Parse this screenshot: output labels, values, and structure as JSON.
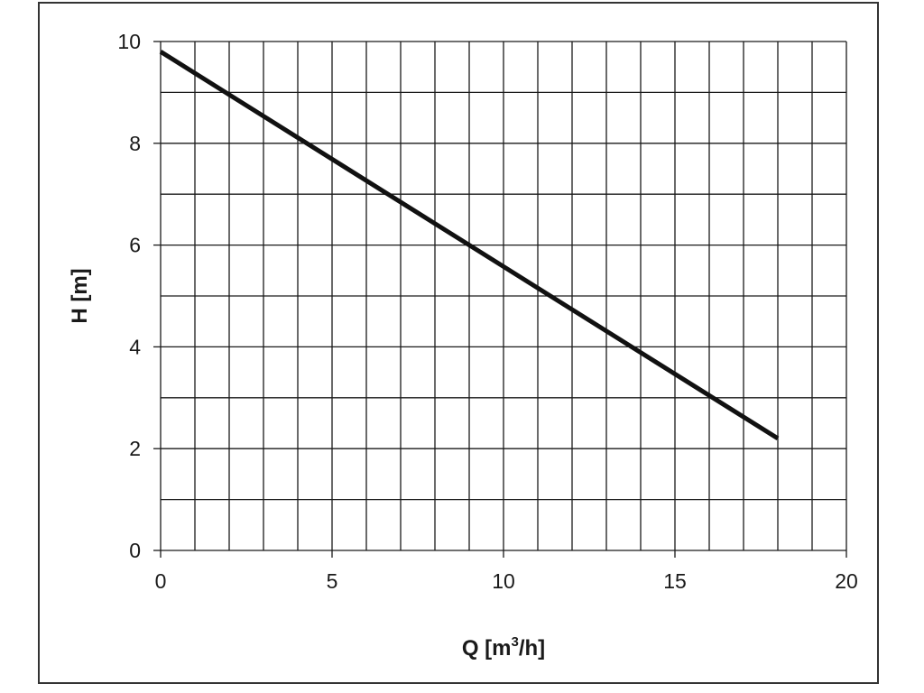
{
  "chart_data": {
    "type": "line",
    "title": "",
    "xlabel": {
      "text": "Q [m/h]",
      "prefix": "Q [m",
      "superscript": "3",
      "suffix": "/h]"
    },
    "ylabel": "H [m]",
    "xlim": [
      0,
      20
    ],
    "ylim": [
      0,
      10
    ],
    "x_ticks": [
      0,
      5,
      10,
      15,
      20
    ],
    "y_ticks": [
      0,
      2,
      4,
      6,
      8,
      10
    ],
    "x_grid_step": 1,
    "y_grid_step": 1,
    "grid": true,
    "legend": "none",
    "series": [
      {
        "x": [
          0,
          18
        ],
        "y": [
          9.8,
          2.2
        ],
        "color": "#111111"
      }
    ]
  },
  "colors": {
    "grid": "#1a1a1a",
    "line": "#111111",
    "frame": "#333333"
  }
}
